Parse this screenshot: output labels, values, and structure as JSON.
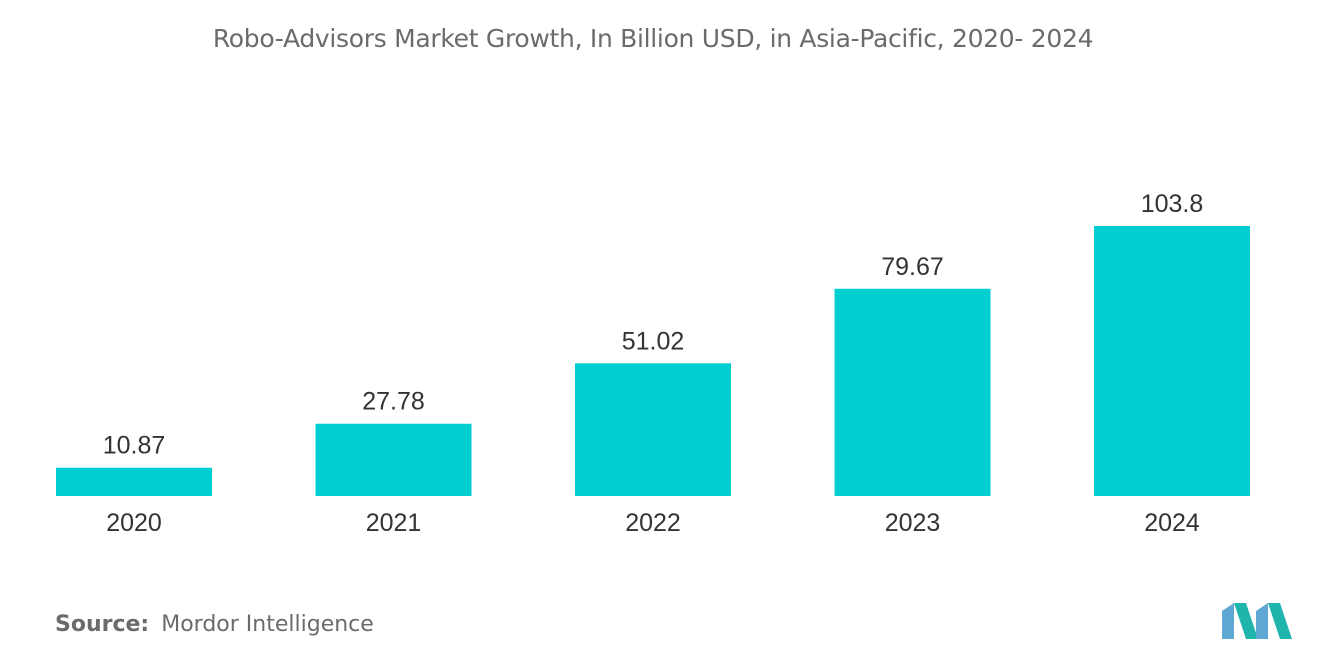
{
  "chart_data": {
    "type": "bar",
    "title": "Robo-Advisors Market Growth, In Billion USD, in Asia-Pacific, 2020- 2024",
    "categories": [
      "2020",
      "2021",
      "2022",
      "2023",
      "2024"
    ],
    "values": [
      10.87,
      27.78,
      51.02,
      79.67,
      103.8
    ],
    "value_labels": [
      "10.87",
      "27.78",
      "51.02",
      "79.67",
      "103.8"
    ],
    "xlabel": "",
    "ylabel": "",
    "ylim": [
      0,
      103.8
    ],
    "grid": false,
    "legend": "none",
    "bar_color": "#00CED1"
  },
  "source": {
    "label": "Source:",
    "value": "Mordor Intelligence"
  },
  "logo": {
    "icon": "mordor-intelligence-logo-icon",
    "colors": [
      "#5FA8D3",
      "#1FB5AD"
    ]
  },
  "colors": {
    "text": "#6b6b6b",
    "value_text": "#333333"
  }
}
